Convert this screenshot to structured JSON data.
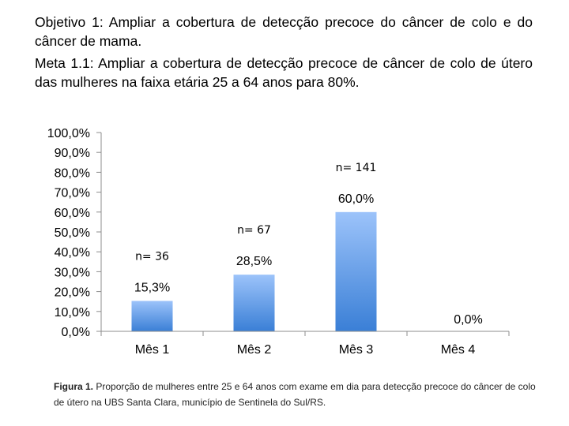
{
  "header": {
    "objective": "Objetivo 1: Ampliar a cobertura de detecção precoce do câncer de colo e do câncer de mama.",
    "goal": "Meta 1.1: Ampliar a cobertura de detecção precoce de câncer de colo de útero das mulheres na faixa etária 25 a 64 anos para 80%."
  },
  "chart_data": {
    "type": "bar",
    "categories": [
      "Mês 1",
      "Mês 2",
      "Mês 3",
      "Mês 4"
    ],
    "values": [
      15.3,
      28.5,
      60.0,
      0.0
    ],
    "value_labels": [
      "15,3%",
      "28,5%",
      "60,0%",
      "0,0%"
    ],
    "n_labels": [
      "n= 36",
      "n= 67",
      "n= 141",
      ""
    ],
    "ylim": [
      0,
      100
    ],
    "yticks": [
      "0,0%",
      "10,0%",
      "20,0%",
      "30,0%",
      "40,0%",
      "50,0%",
      "60,0%",
      "70,0%",
      "80,0%",
      "90,0%",
      "100,0%"
    ],
    "bar_color_top": "#9cc3fa",
    "bar_color_bottom": "#3a7fd6",
    "axis_color": "#8c8c8c"
  },
  "caption": {
    "label": "Figura 1.",
    "text": " Proporção de mulheres entre 25 e 64 anos com exame em dia para detecção precoce do câncer de colo de útero na UBS Santa Clara, município de Sentinela do Sul/RS."
  }
}
